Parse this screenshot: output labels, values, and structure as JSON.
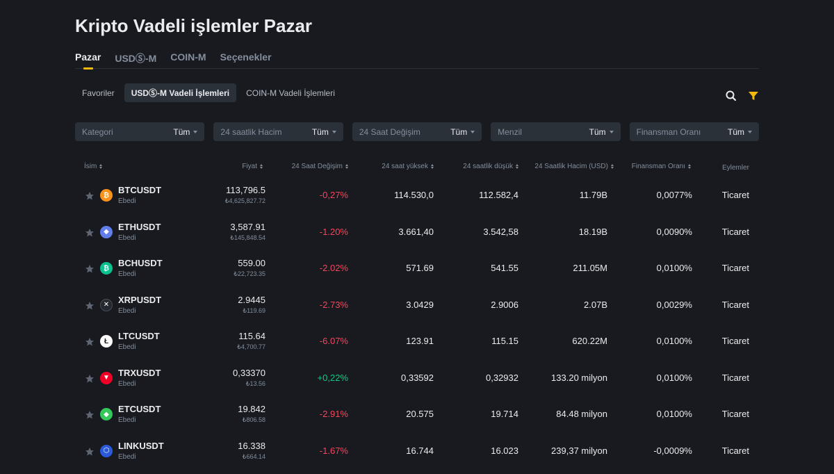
{
  "page": {
    "title": "Kripto Vadeli işlemler Pazar"
  },
  "main_tabs": [
    "Pazar",
    "USDⓈ-M",
    "COIN-M",
    "Seçenekler"
  ],
  "sub_tabs": [
    "Favoriler",
    "USDⓈ-M Vadeli İşlemleri",
    "COIN-M Vadeli İşlemleri"
  ],
  "filters": [
    {
      "label": "Kategori",
      "value": "Tüm"
    },
    {
      "label": "24 saatlik Hacim",
      "value": "Tüm"
    },
    {
      "label": "24 Saat Değişim",
      "value": "Tüm"
    },
    {
      "label": "Menzil",
      "value": "Tüm"
    },
    {
      "label": "Finansman Oranı",
      "value": "Tüm"
    }
  ],
  "table": {
    "headers": {
      "name": "İsim",
      "price": "Fiyat",
      "change": "24 Saat Değişim",
      "high": "24 saat yüksek",
      "low": "24 saatlik düşük",
      "volume": "24 Saatlik Hacim (USD)",
      "funding": "Finansman Oranı",
      "actions": "Eylemler"
    },
    "rows": [
      {
        "symbol": "BTCUSDT",
        "type": "Ebedi",
        "price": "113,796.5",
        "price_try": "₺4,625,827.72",
        "change": "-0,27%",
        "high": "114.530,0",
        "low": "112.582,4",
        "volume": "11.79B",
        "funding": "0,0077%",
        "action": "Ticaret",
        "icon": "bitcoin-icon",
        "color": "#f7931a",
        "glyph": "₿"
      },
      {
        "symbol": "ETHUSDT",
        "type": "Ebedi",
        "price": "3,587.91",
        "price_try": "₺145,848.54",
        "change": "-1.20%",
        "high": "3.661,40",
        "low": "3.542,58",
        "volume": "18.19B",
        "funding": "0,0090%",
        "action": "Ticaret",
        "icon": "ethereum-icon",
        "color": "#627eea",
        "glyph": "◆"
      },
      {
        "symbol": "BCHUSDT",
        "type": "Ebedi",
        "price": "559.00",
        "price_try": "₺22,723.35",
        "change": "-2.02%",
        "high": "571.69",
        "low": "541.55",
        "volume": "211.05M",
        "funding": "0,0100%",
        "action": "Ticaret",
        "icon": "bitcoin-cash-icon",
        "color": "#0ac18e",
        "glyph": "₿"
      },
      {
        "symbol": "XRPUSDT",
        "type": "Ebedi",
        "price": "2.9445",
        "price_try": "₺119.69",
        "change": "-2.73%",
        "high": "3.0429",
        "low": "2.9006",
        "volume": "2.07B",
        "funding": "0,0029%",
        "action": "Ticaret",
        "icon": "xrp-icon",
        "color": "#23292f",
        "glyph": "✕"
      },
      {
        "symbol": "LTCUSDT",
        "type": "Ebedi",
        "price": "115.64",
        "price_try": "₺4,700.77",
        "change": "-6.07%",
        "high": "123.91",
        "low": "115.15",
        "volume": "620.22M",
        "funding": "0,0100%",
        "action": "Ticaret",
        "icon": "litecoin-icon",
        "color": "#ffffff",
        "glyph": "Ł"
      },
      {
        "symbol": "TRXUSDT",
        "type": "Ebedi",
        "price": "0,33370",
        "price_try": "₺13.56",
        "change": "+0,22%",
        "high": "0,33592",
        "low": "0,32932",
        "volume": "133.20 milyon",
        "funding": "0,0100%",
        "action": "Ticaret",
        "icon": "tron-icon",
        "color": "#ef0027",
        "glyph": "▼"
      },
      {
        "symbol": "ETCUSDT",
        "type": "Ebedi",
        "price": "19.842",
        "price_try": "₺806.58",
        "change": "-2.91%",
        "high": "20.575",
        "low": "19.714",
        "volume": "84.48 milyon",
        "funding": "0,0100%",
        "action": "Ticaret",
        "icon": "ethereum-classic-icon",
        "color": "#34c759",
        "glyph": "◆"
      },
      {
        "symbol": "LINKUSDT",
        "type": "Ebedi",
        "price": "16.338",
        "price_try": "₺664.14",
        "change": "-1.67%",
        "high": "16.744",
        "low": "16.023",
        "volume": "239,37 milyon",
        "funding": "-0,0009%",
        "action": "Ticaret",
        "icon": "chainlink-icon",
        "color": "#2a5ada",
        "glyph": "⬡"
      }
    ]
  }
}
